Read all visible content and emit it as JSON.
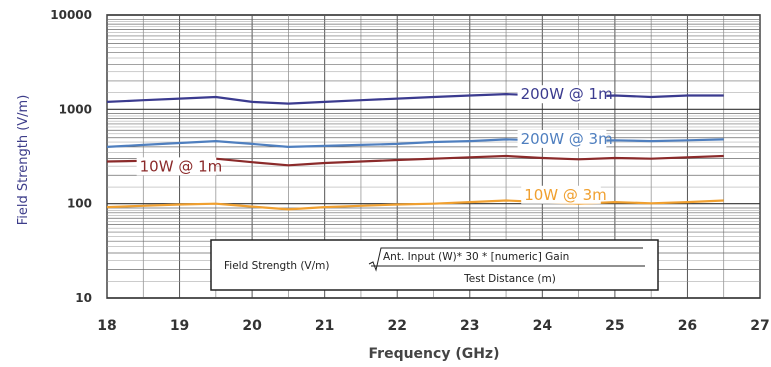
{
  "chart_data": {
    "type": "line",
    "xlabel": "Frequency (GHz)",
    "ylabel": "Field Strength (V/m)",
    "yscale": "log",
    "xlim": [
      18,
      27
    ],
    "ylim": [
      10,
      10000
    ],
    "x_ticks": [
      "18",
      "19",
      "20",
      "21",
      "22",
      "23",
      "24",
      "25",
      "26",
      "27"
    ],
    "y_ticks": [
      "10",
      "100",
      "1000",
      "10000"
    ],
    "grid": true,
    "series": [
      {
        "name": "200W @ 1m",
        "color": "#3b3b8f",
        "x": [
          18,
          18.5,
          19,
          19.5,
          20,
          20.5,
          21,
          21.5,
          22,
          22.5,
          23,
          23.5,
          24,
          24.5,
          25,
          25.5,
          26,
          26.5
        ],
        "values": [
          1200,
          1250,
          1300,
          1350,
          1200,
          1150,
          1200,
          1250,
          1300,
          1350,
          1400,
          1450,
          1400,
          1350,
          1400,
          1350,
          1400,
          1400
        ]
      },
      {
        "name": "200W @ 3m",
        "color": "#4f7fbf",
        "x": [
          18,
          18.5,
          19,
          19.5,
          20,
          20.5,
          21,
          21.5,
          22,
          22.5,
          23,
          23.5,
          24,
          24.5,
          25,
          25.5,
          26,
          26.5
        ],
        "values": [
          400,
          420,
          440,
          460,
          430,
          400,
          410,
          420,
          430,
          450,
          460,
          480,
          470,
          460,
          470,
          460,
          470,
          480
        ]
      },
      {
        "name": "10W @ 1m",
        "color": "#8b2a2a",
        "x": [
          18,
          18.5,
          19,
          19.5,
          20,
          20.5,
          21,
          21.5,
          22,
          22.5,
          23,
          23.5,
          24,
          24.5,
          25,
          25.5,
          26,
          26.5
        ],
        "values": [
          280,
          285,
          295,
          300,
          275,
          255,
          270,
          280,
          290,
          300,
          310,
          320,
          305,
          295,
          305,
          300,
          310,
          320
        ]
      },
      {
        "name": "10W @ 3m",
        "color": "#f0a030",
        "x": [
          18,
          18.5,
          19,
          19.5,
          20,
          20.5,
          21,
          21.5,
          22,
          22.5,
          23,
          23.5,
          24,
          24.5,
          25,
          25.5,
          26,
          26.5
        ],
        "values": [
          92,
          95,
          98,
          100,
          93,
          87,
          92,
          95,
          98,
          100,
          104,
          108,
          104,
          100,
          104,
          101,
          104,
          108
        ]
      }
    ],
    "annotations": [
      {
        "text": "200W @ 1m",
        "x": 23.7,
        "y": 1280,
        "color": "#3b3b8f"
      },
      {
        "text": "200W @ 3m",
        "x": 23.7,
        "y": 430,
        "color": "#4f7fbf"
      },
      {
        "text": "10W @ 1m",
        "x": 18.45,
        "y": 220,
        "color": "#8b2a2a"
      },
      {
        "text": "10W @ 3m",
        "x": 23.75,
        "y": 110,
        "color": "#f0a030"
      }
    ],
    "formula": {
      "lhs": "Field Strength (V/m)",
      "numerator": "Ant. Input (W)* 30 * [numeric] Gain",
      "denominator": "Test Distance (m)"
    }
  }
}
